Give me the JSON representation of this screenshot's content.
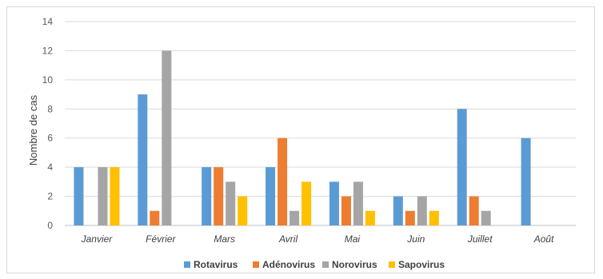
{
  "chart_data": {
    "type": "bar",
    "title": "",
    "xlabel": "",
    "ylabel": "Nombre de cas",
    "ylim": [
      0,
      14
    ],
    "yticks": [
      0,
      2,
      4,
      6,
      8,
      10,
      12,
      14
    ],
    "grid": true,
    "legend_position": "bottom",
    "categories": [
      "Janvier",
      "Février",
      "Mars",
      "Avril",
      "Mai",
      "Juin",
      "Juillet",
      "Août"
    ],
    "series": [
      {
        "name": "Rotavirus",
        "color": "#5b9bd5",
        "values": [
          4,
          9,
          4,
          4,
          3,
          2,
          8,
          6
        ]
      },
      {
        "name": "Adénovirus",
        "color": "#ed7d31",
        "values": [
          0,
          1,
          4,
          6,
          2,
          1,
          2,
          0
        ]
      },
      {
        "name": "Norovirus",
        "color": "#a5a5a5",
        "values": [
          4,
          12,
          3,
          1,
          3,
          2,
          1,
          0
        ]
      },
      {
        "name": "Sapovirus",
        "color": "#ffc000",
        "values": [
          4,
          0,
          2,
          3,
          1,
          1,
          0,
          0
        ]
      }
    ]
  }
}
